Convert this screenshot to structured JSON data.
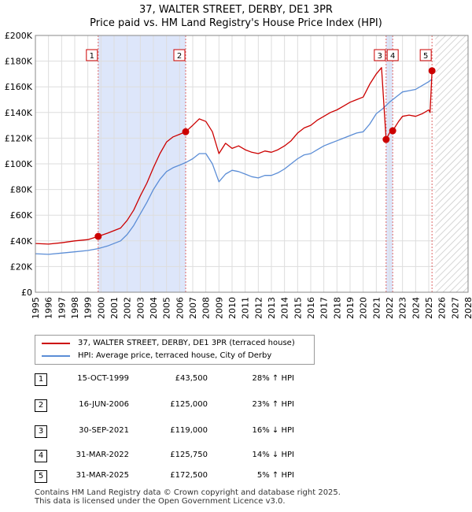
{
  "chart_data": {
    "type": "line",
    "title": "37, WALTER STREET, DERBY, DE1 3PR",
    "subtitle": "Price paid vs. HM Land Registry's House Price Index (HPI)",
    "xlim": [
      1995,
      2028
    ],
    "ylim": [
      0,
      200000
    ],
    "x_ticks": [
      1995,
      1996,
      1997,
      1998,
      1999,
      2000,
      2001,
      2002,
      2003,
      2004,
      2005,
      2006,
      2007,
      2008,
      2009,
      2010,
      2011,
      2012,
      2013,
      2014,
      2015,
      2016,
      2017,
      2018,
      2019,
      2020,
      2021,
      2022,
      2023,
      2024,
      2025,
      2026,
      2027,
      2028
    ],
    "y_ticks": [
      {
        "value": 0,
        "label": "£0"
      },
      {
        "value": 20000,
        "label": "£20K"
      },
      {
        "value": 40000,
        "label": "£40K"
      },
      {
        "value": 60000,
        "label": "£60K"
      },
      {
        "value": 80000,
        "label": "£80K"
      },
      {
        "value": 100000,
        "label": "£100K"
      },
      {
        "value": 120000,
        "label": "£120K"
      },
      {
        "value": 140000,
        "label": "£140K"
      },
      {
        "value": 160000,
        "label": "£160K"
      },
      {
        "value": 180000,
        "label": "£180K"
      },
      {
        "value": 200000,
        "label": "£200K"
      }
    ],
    "shaded_ranges": [
      [
        1999.79,
        2006.46
      ],
      [
        2021.75,
        2022.25
      ]
    ],
    "future_hatch_start": 2025.5,
    "series": [
      {
        "name": "37, WALTER STREET, DERBY, DE1 3PR (terraced house)",
        "color": "#cc0000",
        "points": [
          [
            1995.0,
            38000
          ],
          [
            1996.0,
            37500
          ],
          [
            1997.0,
            38500
          ],
          [
            1998.0,
            40000
          ],
          [
            1999.0,
            41000
          ],
          [
            1999.79,
            43500
          ],
          [
            2000.5,
            46000
          ],
          [
            2001.5,
            50000
          ],
          [
            2002.0,
            56000
          ],
          [
            2002.5,
            64000
          ],
          [
            2003.0,
            75000
          ],
          [
            2003.5,
            85000
          ],
          [
            2004.0,
            97000
          ],
          [
            2004.5,
            108000
          ],
          [
            2005.0,
            117000
          ],
          [
            2005.5,
            121000
          ],
          [
            2006.0,
            123000
          ],
          [
            2006.46,
            125000
          ],
          [
            2007.0,
            130000
          ],
          [
            2007.5,
            135000
          ],
          [
            2008.0,
            133000
          ],
          [
            2008.5,
            125000
          ],
          [
            2009.0,
            108000
          ],
          [
            2009.5,
            116000
          ],
          [
            2010.0,
            112000
          ],
          [
            2010.5,
            114000
          ],
          [
            2011.0,
            111000
          ],
          [
            2011.5,
            109000
          ],
          [
            2012.0,
            108000
          ],
          [
            2012.5,
            110000
          ],
          [
            2013.0,
            109000
          ],
          [
            2013.5,
            111000
          ],
          [
            2014.0,
            114000
          ],
          [
            2014.5,
            118000
          ],
          [
            2015.0,
            124000
          ],
          [
            2015.5,
            128000
          ],
          [
            2016.0,
            130000
          ],
          [
            2016.5,
            134000
          ],
          [
            2017.0,
            137000
          ],
          [
            2017.5,
            140000
          ],
          [
            2018.0,
            142000
          ],
          [
            2018.5,
            145000
          ],
          [
            2019.0,
            148000
          ],
          [
            2019.5,
            150000
          ],
          [
            2020.0,
            152000
          ],
          [
            2020.5,
            162000
          ],
          [
            2021.0,
            170000
          ],
          [
            2021.4,
            175000
          ],
          [
            2021.75,
            119000
          ],
          [
            2022.0,
            124000
          ],
          [
            2022.25,
            125750
          ],
          [
            2022.7,
            133000
          ],
          [
            2023.0,
            137000
          ],
          [
            2023.5,
            138000
          ],
          [
            2024.0,
            137000
          ],
          [
            2024.5,
            139000
          ],
          [
            2025.0,
            142000
          ],
          [
            2025.1,
            140000
          ],
          [
            2025.25,
            172500
          ]
        ]
      },
      {
        "name": "HPI: Average price, terraced house, City of Derby",
        "color": "#5b8dd6",
        "points": [
          [
            1995.0,
            30000
          ],
          [
            1996.0,
            29500
          ],
          [
            1997.0,
            30500
          ],
          [
            1998.0,
            31500
          ],
          [
            1999.0,
            32500
          ],
          [
            1999.79,
            34000
          ],
          [
            2000.5,
            36000
          ],
          [
            2001.5,
            40000
          ],
          [
            2002.0,
            45000
          ],
          [
            2002.5,
            52000
          ],
          [
            2003.0,
            61000
          ],
          [
            2003.5,
            70000
          ],
          [
            2004.0,
            80000
          ],
          [
            2004.5,
            88000
          ],
          [
            2005.0,
            94000
          ],
          [
            2005.5,
            97000
          ],
          [
            2006.0,
            99000
          ],
          [
            2006.46,
            101000
          ],
          [
            2007.0,
            104000
          ],
          [
            2007.5,
            108000
          ],
          [
            2008.0,
            108000
          ],
          [
            2008.5,
            100000
          ],
          [
            2009.0,
            86000
          ],
          [
            2009.5,
            92000
          ],
          [
            2010.0,
            95000
          ],
          [
            2010.5,
            94000
          ],
          [
            2011.0,
            92000
          ],
          [
            2011.5,
            90000
          ],
          [
            2012.0,
            89000
          ],
          [
            2012.5,
            91000
          ],
          [
            2013.0,
            91000
          ],
          [
            2013.5,
            93000
          ],
          [
            2014.0,
            96000
          ],
          [
            2014.5,
            100000
          ],
          [
            2015.0,
            104000
          ],
          [
            2015.5,
            107000
          ],
          [
            2016.0,
            108000
          ],
          [
            2016.5,
            111000
          ],
          [
            2017.0,
            114000
          ],
          [
            2017.5,
            116000
          ],
          [
            2018.0,
            118000
          ],
          [
            2018.5,
            120000
          ],
          [
            2019.0,
            122000
          ],
          [
            2019.5,
            124000
          ],
          [
            2020.0,
            125000
          ],
          [
            2020.5,
            131000
          ],
          [
            2021.0,
            139000
          ],
          [
            2021.5,
            143000
          ],
          [
            2022.0,
            148000
          ],
          [
            2022.5,
            152000
          ],
          [
            2023.0,
            156000
          ],
          [
            2023.5,
            157000
          ],
          [
            2024.0,
            158000
          ],
          [
            2024.5,
            161000
          ],
          [
            2025.0,
            164000
          ],
          [
            2025.25,
            166000
          ]
        ]
      }
    ],
    "sales": [
      {
        "num": "1",
        "x": 1999.79,
        "price": 43500,
        "date": "15-OCT-1999",
        "price_label": "£43,500",
        "hpi": "28% ↑ HPI"
      },
      {
        "num": "2",
        "x": 2006.46,
        "price": 125000,
        "date": "16-JUN-2006",
        "price_label": "£125,000",
        "hpi": "23% ↑ HPI"
      },
      {
        "num": "3",
        "x": 2021.75,
        "price": 119000,
        "date": "30-SEP-2021",
        "price_label": "£119,000",
        "hpi": "16% ↓ HPI"
      },
      {
        "num": "4",
        "x": 2022.25,
        "price": 125750,
        "date": "31-MAR-2022",
        "price_label": "£125,750",
        "hpi": "14% ↓ HPI"
      },
      {
        "num": "5",
        "x": 2025.25,
        "price": 172500,
        "date": "31-MAR-2025",
        "price_label": "£172,500",
        "hpi": "5% ↑ HPI"
      }
    ]
  },
  "legend": {
    "property_label": "37, WALTER STREET, DERBY, DE1 3PR (terraced house)",
    "hpi_label": "HPI: Average price, terraced house, City of Derby"
  },
  "colors": {
    "property": "#cc0000",
    "hpi": "#5b8dd6",
    "shade": "#dde6fa",
    "marker_line": "#d66"
  },
  "footer": {
    "line1": "Contains HM Land Registry data © Crown copyright and database right 2025.",
    "line2": "This data is licensed under the Open Government Licence v3.0."
  }
}
